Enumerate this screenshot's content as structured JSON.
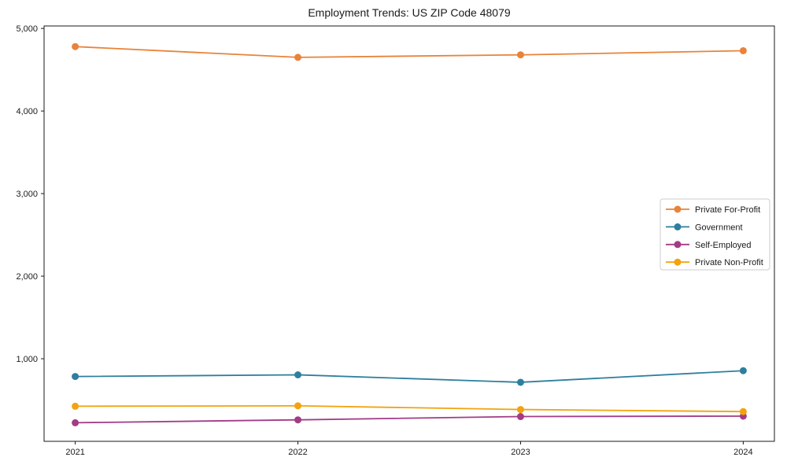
{
  "chart_data": {
    "type": "line",
    "title": "Employment Trends: US ZIP Code 48079",
    "x": [
      2021,
      2022,
      2023,
      2024
    ],
    "x_tick_labels": [
      "2021",
      "2022",
      "2023",
      "2024"
    ],
    "series": [
      {
        "name": "Private For-Profit",
        "color": "#E8833A",
        "values": [
          4780,
          4650,
          4680,
          4730
        ]
      },
      {
        "name": "Government",
        "color": "#2E7F9E",
        "values": [
          785,
          805,
          715,
          855
        ]
      },
      {
        "name": "Self-Employed",
        "color": "#A23C87",
        "values": [
          225,
          260,
          300,
          305
        ]
      },
      {
        "name": "Private Non-Profit",
        "color": "#F2A30F",
        "values": [
          425,
          430,
          385,
          360
        ]
      }
    ],
    "yticks": [
      1000,
      2000,
      3000,
      4000,
      5000
    ],
    "ytick_labels": [
      "1,000",
      "2,000",
      "3,000",
      "4,000",
      "5,000"
    ],
    "ylim": [
      0,
      5030
    ],
    "xlim": [
      2020.86,
      2024.14
    ],
    "grid": false,
    "legend_position": "center-right",
    "marker": "circle",
    "axis_color": "#1a1a1a",
    "text_color": "#1a1a1a",
    "background": "#ffffff"
  }
}
